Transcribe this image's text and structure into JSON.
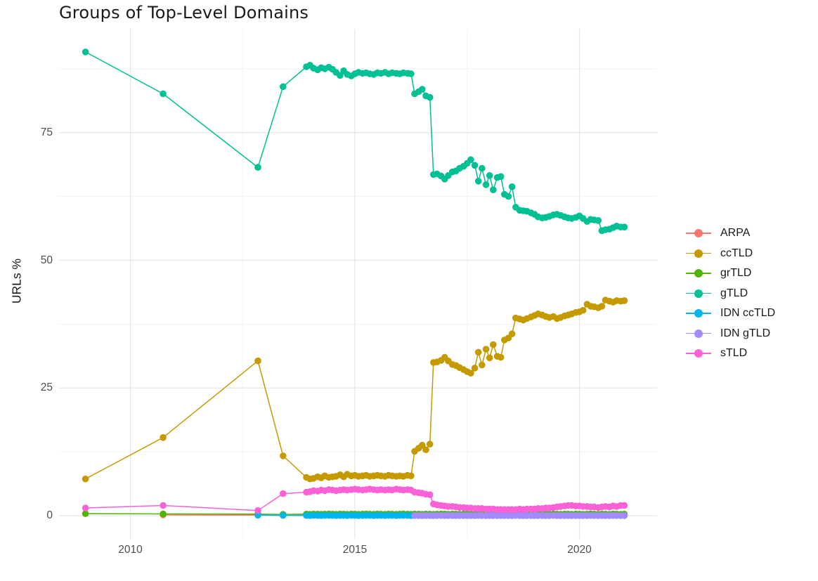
{
  "title": "Groups of Top-Level Domains",
  "axes": {
    "y_label": "URLs %",
    "x_tick_labels": [
      "2010",
      "2015",
      "2020"
    ],
    "y_tick_labels": [
      "0",
      "25",
      "50",
      "75"
    ]
  },
  "colors": {
    "background": "#ffffff",
    "grid_major": "#e7e7e7",
    "grid_minor": "#f3f3f3",
    "tick_label": "#4d4d4d",
    "title_text": "#1a1a1a"
  },
  "chart_data": {
    "type": "line",
    "title": "Groups of Top-Level Domains",
    "xlabel": "",
    "ylabel": "URLs %",
    "legend_position": "right",
    "grid": true,
    "xlim": [
      2008.4,
      2021.7
    ],
    "ylim": [
      -4.5,
      95.3
    ],
    "x_major_gridlines": [
      2010,
      2015,
      2020
    ],
    "x_minor_gridlines": [
      2012.5,
      2017.5
    ],
    "y_major_gridlines": [
      0,
      25,
      50,
      75
    ],
    "y_minor_gridlines": [
      12.5,
      37.5,
      62.5,
      87.5
    ],
    "x_ticks": [
      2010,
      2015,
      2020
    ],
    "y_ticks": [
      0,
      25,
      50,
      75
    ],
    "x": [
      2009.0,
      2010.73,
      2012.84,
      2013.4,
      2013.92,
      2014.0,
      2014.08,
      2014.17,
      2014.25,
      2014.33,
      2014.42,
      2014.5,
      2014.58,
      2014.67,
      2014.75,
      2014.83,
      2014.92,
      2015.0,
      2015.08,
      2015.17,
      2015.25,
      2015.33,
      2015.42,
      2015.5,
      2015.58,
      2015.67,
      2015.75,
      2015.83,
      2015.92,
      2016.0,
      2016.08,
      2016.17,
      2016.25,
      2016.33,
      2016.42,
      2016.5,
      2016.58,
      2016.67,
      2016.75,
      2016.83,
      2016.92,
      2017.0,
      2017.08,
      2017.17,
      2017.25,
      2017.33,
      2017.42,
      2017.5,
      2017.58,
      2017.67,
      2017.75,
      2017.83,
      2017.92,
      2018.0,
      2018.08,
      2018.17,
      2018.25,
      2018.33,
      2018.42,
      2018.5,
      2018.58,
      2018.67,
      2018.75,
      2018.83,
      2018.92,
      2019.0,
      2019.08,
      2019.17,
      2019.25,
      2019.33,
      2019.42,
      2019.5,
      2019.58,
      2019.67,
      2019.75,
      2019.83,
      2019.92,
      2020.0,
      2020.08,
      2020.17,
      2020.25,
      2020.33,
      2020.42,
      2020.5,
      2020.58,
      2020.67,
      2020.75,
      2020.83,
      2020.92,
      2021.0
    ],
    "series": [
      {
        "name": "ARPA",
        "color": "#F8766D",
        "values": [
          null,
          0.15,
          0.1,
          0.08,
          0.08,
          0.07,
          0.09,
          0.08,
          0.06,
          0.08,
          0.1,
          0.08,
          0.07,
          0.09,
          0.08,
          0.07,
          0.09,
          0.08,
          0.06,
          0.08,
          0.1,
          0.08,
          0.07,
          0.09,
          0.08,
          0.07,
          0.09,
          0.08,
          0.06,
          0.08,
          0.1,
          0.08,
          0.07,
          0.09,
          0.08,
          0.07,
          0.09,
          0.08,
          0.06,
          0.08,
          0.1,
          0.08,
          0.07,
          0.09,
          0.08,
          0.07,
          0.09,
          0.08,
          0.06,
          0.08,
          0.1,
          0.08,
          0.07,
          0.09,
          0.08,
          0.07,
          0.09,
          0.08,
          0.06,
          0.08,
          0.1,
          0.08,
          0.07,
          0.09,
          0.08,
          0.07,
          0.09,
          0.08,
          0.06,
          0.08,
          0.1,
          0.08,
          0.07,
          0.09,
          0.08,
          0.07,
          0.09,
          0.08,
          0.06,
          0.08,
          0.1,
          0.08,
          0.07,
          0.09,
          0.08,
          0.07,
          0.09,
          0.08,
          0.06,
          0.08
        ]
      },
      {
        "name": "ccTLD",
        "color": "#C49A00",
        "values": [
          7.2,
          15.3,
          30.3,
          11.7,
          7.5,
          7.2,
          7.3,
          7.6,
          7.4,
          7.8,
          7.5,
          7.6,
          7.7,
          8.0,
          7.6,
          8.1,
          7.8,
          7.9,
          7.7,
          7.8,
          7.9,
          7.7,
          7.8,
          7.9,
          7.8,
          7.7,
          7.9,
          7.8,
          7.7,
          7.8,
          7.7,
          7.9,
          7.8,
          12.6,
          13.2,
          13.8,
          12.9,
          14.0,
          30.0,
          30.1,
          30.4,
          31.0,
          30.3,
          29.6,
          29.4,
          29.0,
          28.6,
          28.2,
          27.9,
          28.9,
          32.0,
          29.5,
          32.6,
          30.9,
          33.5,
          31.2,
          31.0,
          34.4,
          34.8,
          35.6,
          38.7,
          38.5,
          38.3,
          38.6,
          38.9,
          39.2,
          39.5,
          39.3,
          39.0,
          38.8,
          39.0,
          38.6,
          38.8,
          39.1,
          39.3,
          39.5,
          39.8,
          39.9,
          40.2,
          41.4,
          41.0,
          40.9,
          40.7,
          41.0,
          42.2,
          42.0,
          41.8,
          42.1,
          42.0,
          42.1
        ]
      },
      {
        "name": "grTLD",
        "color": "#53B400",
        "values": [
          0.4,
          0.35,
          0.3,
          0.25,
          0.3,
          0.28,
          0.32,
          0.3,
          0.27,
          0.3,
          0.33,
          0.3,
          0.28,
          0.31,
          0.3,
          0.28,
          0.32,
          0.3,
          0.27,
          0.3,
          0.33,
          0.3,
          0.28,
          0.31,
          0.3,
          0.28,
          0.32,
          0.3,
          0.27,
          0.3,
          0.33,
          0.3,
          0.28,
          0.31,
          0.3,
          0.28,
          0.32,
          0.3,
          0.27,
          0.3,
          0.33,
          0.3,
          0.28,
          0.31,
          0.3,
          0.28,
          0.32,
          0.3,
          0.27,
          0.3,
          0.33,
          0.3,
          0.28,
          0.31,
          0.3,
          0.28,
          0.32,
          0.3,
          0.27,
          0.3,
          0.33,
          0.3,
          0.28,
          0.31,
          0.3,
          0.28,
          0.32,
          0.3,
          0.27,
          0.3,
          0.33,
          0.3,
          0.28,
          0.31,
          0.3,
          0.28,
          0.32,
          0.3,
          0.27,
          0.3,
          0.33,
          0.3,
          0.28,
          0.31,
          0.3,
          0.28,
          0.32,
          0.3,
          0.27,
          0.3
        ]
      },
      {
        "name": "gTLD",
        "color": "#00C094",
        "values": [
          90.8,
          82.6,
          68.2,
          84.0,
          87.9,
          88.2,
          87.6,
          87.3,
          87.7,
          87.5,
          87.8,
          87.4,
          86.8,
          86.2,
          87.1,
          86.4,
          86.1,
          86.5,
          86.8,
          86.6,
          86.7,
          86.5,
          86.4,
          86.7,
          86.6,
          86.8,
          86.5,
          86.7,
          86.6,
          86.5,
          86.7,
          86.6,
          86.5,
          82.6,
          83.0,
          83.5,
          82.2,
          81.9,
          66.8,
          66.9,
          66.5,
          65.9,
          66.6,
          67.3,
          67.5,
          68.0,
          68.4,
          69.0,
          69.7,
          68.6,
          65.5,
          68.0,
          64.8,
          66.6,
          63.8,
          66.2,
          66.4,
          62.9,
          62.5,
          64.4,
          60.4,
          59.8,
          59.7,
          59.6,
          59.3,
          59.0,
          58.5,
          58.3,
          58.4,
          58.6,
          58.9,
          59.0,
          58.8,
          58.5,
          58.3,
          58.2,
          58.4,
          58.7,
          58.2,
          57.6,
          58.0,
          57.9,
          57.8,
          55.8,
          56.0,
          56.1,
          56.4,
          56.7,
          56.5,
          56.5
        ]
      },
      {
        "name": "IDN ccTLD",
        "color": "#00B6EB",
        "values": [
          null,
          null,
          0.1,
          0.06,
          0.04,
          0.03,
          0.05,
          0.04,
          0.03,
          0.04,
          0.05,
          0.04,
          0.03,
          0.04,
          0.04,
          0.03,
          0.05,
          0.04,
          0.03,
          0.04,
          0.05,
          0.04,
          0.03,
          0.04,
          0.04,
          0.03,
          0.05,
          0.04,
          0.03,
          0.04,
          0.05,
          0.04,
          0.03,
          0.04,
          0.04,
          0.03,
          0.05,
          0.04,
          0.03,
          0.04,
          0.05,
          0.04,
          0.03,
          0.04,
          0.04,
          0.03,
          0.05,
          0.04,
          0.03,
          0.04,
          0.05,
          0.04,
          0.03,
          0.04,
          0.04,
          0.03,
          0.05,
          0.04,
          0.03,
          0.04,
          0.05,
          0.04,
          0.03,
          0.04,
          0.04,
          0.03,
          0.05,
          0.04,
          0.03,
          0.04,
          0.05,
          0.04,
          0.03,
          0.04,
          0.04,
          0.03,
          0.05,
          0.04,
          0.03,
          0.04,
          0.05,
          0.04,
          0.03,
          0.04,
          0.04,
          0.03,
          0.05,
          0.04,
          0.03,
          0.04
        ]
      },
      {
        "name": "IDN gTLD",
        "color": "#A58AFF",
        "values": [
          null,
          null,
          null,
          null,
          null,
          null,
          null,
          null,
          null,
          null,
          null,
          null,
          null,
          null,
          null,
          null,
          null,
          null,
          null,
          null,
          null,
          null,
          null,
          null,
          null,
          null,
          null,
          null,
          null,
          null,
          null,
          null,
          null,
          0.03,
          0.02,
          0.04,
          0.03,
          0.03,
          0.03,
          0.02,
          0.04,
          0.03,
          0.03,
          0.03,
          0.02,
          0.04,
          0.03,
          0.03,
          0.03,
          0.02,
          0.04,
          0.03,
          0.03,
          0.03,
          0.02,
          0.04,
          0.03,
          0.03,
          0.03,
          0.02,
          0.04,
          0.03,
          0.03,
          0.03,
          0.02,
          0.04,
          0.03,
          0.03,
          0.03,
          0.02,
          0.04,
          0.03,
          0.03,
          0.03,
          0.02,
          0.04,
          0.03,
          0.03,
          0.03,
          0.02,
          0.04,
          0.03,
          0.03,
          0.03,
          0.02,
          0.04,
          0.03,
          0.03,
          0.03,
          0.02
        ]
      },
      {
        "name": "sTLD",
        "color": "#FB61D7",
        "values": [
          1.5,
          2.0,
          1.0,
          4.3,
          4.6,
          4.7,
          4.9,
          4.8,
          5.0,
          4.9,
          5.1,
          5.0,
          4.9,
          5.0,
          5.1,
          5.0,
          5.1,
          5.2,
          5.1,
          5.0,
          5.1,
          5.2,
          5.1,
          5.0,
          5.1,
          5.0,
          5.1,
          5.0,
          5.2,
          5.1,
          5.0,
          5.1,
          5.0,
          4.6,
          4.5,
          4.4,
          4.2,
          4.1,
          2.3,
          2.1,
          2.0,
          1.9,
          1.8,
          1.8,
          1.7,
          1.6,
          1.6,
          1.5,
          1.5,
          1.4,
          1.4,
          1.4,
          1.3,
          1.3,
          1.3,
          1.2,
          1.2,
          1.2,
          1.2,
          1.2,
          1.2,
          1.3,
          1.2,
          1.3,
          1.3,
          1.3,
          1.4,
          1.4,
          1.5,
          1.5,
          1.6,
          1.7,
          1.8,
          1.9,
          2.0,
          2.0,
          1.9,
          1.9,
          1.8,
          1.8,
          1.7,
          1.7,
          1.6,
          1.7,
          1.8,
          1.7,
          1.9,
          1.8,
          2.0,
          2.0
        ]
      }
    ]
  }
}
